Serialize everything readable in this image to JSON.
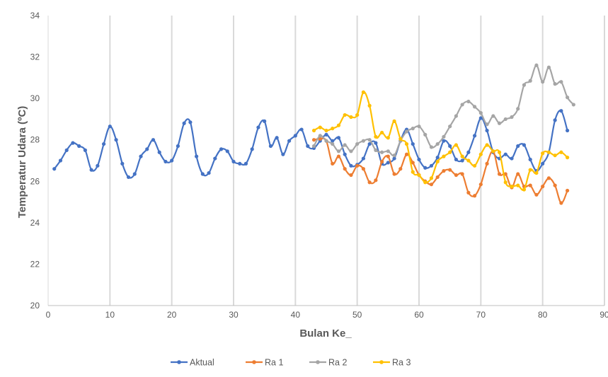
{
  "chart_data": {
    "type": "line",
    "title": "",
    "xlabel": "Bulan Ke_",
    "ylabel": "Temperatur Udara (ºC)",
    "xlim": [
      0,
      90
    ],
    "ylim": [
      20,
      34
    ],
    "x_ticks": [
      0,
      10,
      20,
      30,
      40,
      50,
      60,
      70,
      80,
      90
    ],
    "y_ticks": [
      20,
      22,
      24,
      26,
      28,
      30,
      32,
      34
    ],
    "x_tick_labels": [
      "0",
      "10",
      "20",
      "30",
      "40",
      "50",
      "60",
      "70",
      "80",
      "90"
    ],
    "y_tick_labels": [
      "20",
      "22",
      "24",
      "26",
      "28",
      "30",
      "32",
      "34"
    ],
    "grid": "vertical",
    "legend_position": "bottom",
    "series": [
      {
        "name": "Aktual",
        "color": "#4472C4",
        "x_start": 1,
        "values": [
          26.6,
          27.0,
          27.5,
          27.85,
          27.7,
          27.5,
          26.55,
          26.75,
          27.8,
          28.65,
          28.0,
          26.85,
          26.2,
          26.35,
          27.2,
          27.55,
          28.0,
          27.4,
          26.95,
          27.0,
          27.7,
          28.8,
          28.85,
          27.2,
          26.35,
          26.4,
          27.1,
          27.55,
          27.45,
          26.95,
          26.85,
          26.85,
          27.55,
          28.6,
          28.9,
          27.7,
          28.1,
          27.3,
          27.95,
          28.2,
          28.5,
          27.7,
          27.6,
          27.95,
          28.25,
          27.95,
          28.1,
          27.3,
          26.75,
          26.8,
          27.1,
          27.8,
          27.85,
          26.85,
          26.9,
          27.1,
          27.95,
          28.5,
          27.8,
          27.05,
          26.65,
          26.75,
          27.15,
          27.95,
          27.7,
          27.05,
          27.0,
          27.4,
          28.2,
          29.05,
          28.45,
          27.4,
          27.1,
          27.3,
          27.1,
          27.7,
          27.75,
          27.05,
          26.5,
          26.85,
          27.4,
          28.95,
          29.4,
          28.45
        ]
      },
      {
        "name": "Ra 1",
        "color": "#ED7D31",
        "x_start": 43,
        "values": [
          28.0,
          28.05,
          27.95,
          26.85,
          27.2,
          26.6,
          26.3,
          26.75,
          26.6,
          25.95,
          26.05,
          26.95,
          27.2,
          26.35,
          26.6,
          27.3,
          26.9,
          26.3,
          26.0,
          25.85,
          26.2,
          26.5,
          26.55,
          26.3,
          26.35,
          25.45,
          25.3,
          25.85,
          26.85,
          27.45,
          26.35,
          26.35,
          25.7,
          26.35,
          25.75,
          25.8,
          25.35,
          25.75,
          26.15,
          25.8,
          24.95,
          25.55
        ]
      },
      {
        "name": "Ra 2",
        "color": "#A5A5A5",
        "x_start": 43,
        "values": [
          27.7,
          28.2,
          27.95,
          27.8,
          27.45,
          27.75,
          27.45,
          27.8,
          27.95,
          28.0,
          27.5,
          27.4,
          27.45,
          27.25,
          27.95,
          28.4,
          28.55,
          28.65,
          28.25,
          27.65,
          27.8,
          28.15,
          28.65,
          29.15,
          29.7,
          29.85,
          29.6,
          29.3,
          28.75,
          29.15,
          28.8,
          29.0,
          29.1,
          29.5,
          30.65,
          30.85,
          31.6,
          30.8,
          31.5,
          30.7,
          30.8,
          30.05,
          29.7
        ]
      },
      {
        "name": "Ra 3",
        "color": "#FFC000",
        "x_start": 43,
        "values": [
          28.45,
          28.6,
          28.45,
          28.55,
          28.7,
          29.2,
          29.1,
          29.2,
          30.3,
          29.65,
          28.15,
          28.35,
          28.1,
          28.9,
          28.05,
          27.8,
          26.45,
          26.3,
          25.95,
          26.15,
          26.95,
          27.2,
          27.4,
          27.75,
          27.2,
          27.0,
          26.75,
          27.3,
          27.75,
          27.45,
          27.4,
          25.95,
          25.75,
          25.8,
          25.6,
          26.55,
          26.4,
          27.35,
          27.4,
          27.25,
          27.4,
          27.15
        ]
      }
    ]
  }
}
